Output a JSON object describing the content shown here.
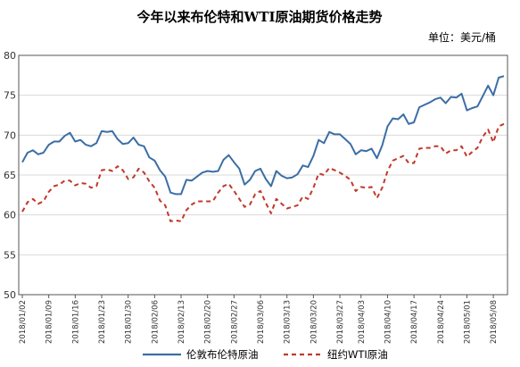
{
  "chart_data": {
    "type": "line",
    "title": "今年以来布伦特和WTI原油期货价格走势",
    "unit_label": "单位：美元/桶",
    "xlabel": "",
    "ylabel": "",
    "ylim": [
      50,
      80
    ],
    "y_ticks": [
      50,
      55,
      60,
      65,
      70,
      75,
      80
    ],
    "grid": "horizontal",
    "legend_position": "bottom",
    "x": [
      "2018/01/02",
      "2018/01/03",
      "2018/01/04",
      "2018/01/05",
      "2018/01/08",
      "2018/01/09",
      "2018/01/10",
      "2018/01/11",
      "2018/01/12",
      "2018/01/15",
      "2018/01/16",
      "2018/01/17",
      "2018/01/18",
      "2018/01/19",
      "2018/01/22",
      "2018/01/23",
      "2018/01/24",
      "2018/01/25",
      "2018/01/26",
      "2018/01/29",
      "2018/01/30",
      "2018/01/31",
      "2018/02/01",
      "2018/02/02",
      "2018/02/05",
      "2018/02/06",
      "2018/02/07",
      "2018/02/08",
      "2018/02/09",
      "2018/02/12",
      "2018/02/13",
      "2018/02/14",
      "2018/02/15",
      "2018/02/16",
      "2018/02/19",
      "2018/02/20",
      "2018/02/21",
      "2018/02/22",
      "2018/02/23",
      "2018/02/26",
      "2018/02/27",
      "2018/02/28",
      "2018/03/01",
      "2018/03/02",
      "2018/03/05",
      "2018/03/06",
      "2018/03/07",
      "2018/03/08",
      "2018/03/09",
      "2018/03/12",
      "2018/03/13",
      "2018/03/14",
      "2018/03/15",
      "2018/03/16",
      "2018/03/19",
      "2018/03/20",
      "2018/03/21",
      "2018/03/22",
      "2018/03/23",
      "2018/03/26",
      "2018/03/27",
      "2018/03/28",
      "2018/03/29",
      "2018/04/02",
      "2018/04/03",
      "2018/04/04",
      "2018/04/05",
      "2018/04/06",
      "2018/04/09",
      "2018/04/10",
      "2018/04/11",
      "2018/04/12",
      "2018/04/13",
      "2018/04/16",
      "2018/04/17",
      "2018/04/18",
      "2018/04/19",
      "2018/04/20",
      "2018/04/23",
      "2018/04/24",
      "2018/04/25",
      "2018/04/26",
      "2018/04/27",
      "2018/04/30",
      "2018/05/01",
      "2018/05/02",
      "2018/05/03",
      "2018/05/04",
      "2018/05/07",
      "2018/05/08",
      "2018/05/09",
      "2018/05/10"
    ],
    "x_tick_labels": [
      "2018/01/02",
      "2018/01/09",
      "2018/01/16",
      "2018/01/23",
      "2018/01/30",
      "2018/02/06",
      "2018/02/13",
      "2018/02/20",
      "2018/02/27",
      "2018/03/06",
      "2018/03/13",
      "2018/03/20",
      "2018/03/27",
      "2018/04/03",
      "2018/04/10",
      "2018/04/17",
      "2018/04/24",
      "2018/05/01",
      "2018/05/08"
    ],
    "series": [
      {
        "name": "伦敦布伦特原油",
        "color": "#3b6ea5",
        "style": "solid",
        "values": [
          66.6,
          67.8,
          68.1,
          67.6,
          67.8,
          68.8,
          69.2,
          69.2,
          69.9,
          70.3,
          69.2,
          69.4,
          68.8,
          68.6,
          69.0,
          70.5,
          70.4,
          70.5,
          69.5,
          68.9,
          69.0,
          69.7,
          68.8,
          68.6,
          67.2,
          66.8,
          65.6,
          64.8,
          62.8,
          62.6,
          62.6,
          64.4,
          64.3,
          64.8,
          65.3,
          65.5,
          65.4,
          65.5,
          66.9,
          67.5,
          66.6,
          65.8,
          63.8,
          64.4,
          65.5,
          65.8,
          64.5,
          63.6,
          65.5,
          64.9,
          64.6,
          64.7,
          65.1,
          66.2,
          66.0,
          67.4,
          69.4,
          69.0,
          70.4,
          70.1,
          70.1,
          69.5,
          68.9,
          67.6,
          68.1,
          68.0,
          68.3,
          67.1,
          68.7,
          71.1,
          72.1,
          72.0,
          72.6,
          71.4,
          71.6,
          73.5,
          73.8,
          74.1,
          74.5,
          74.7,
          74.0,
          74.8,
          74.7,
          75.2,
          73.1,
          73.4,
          73.6,
          74.9,
          76.2,
          75.0,
          77.2,
          77.4
        ]
      },
      {
        "name": "纽约WTI原油",
        "color": "#c0392b",
        "style": "dashed",
        "values": [
          60.4,
          61.6,
          62.0,
          61.4,
          61.7,
          62.9,
          63.6,
          63.8,
          64.3,
          64.3,
          63.7,
          64.0,
          63.9,
          63.4,
          63.6,
          65.6,
          65.7,
          65.5,
          66.1,
          65.6,
          64.5,
          64.7,
          65.8,
          65.3,
          64.2,
          63.4,
          61.8,
          61.2,
          59.2,
          59.3,
          59.2,
          60.6,
          61.3,
          61.7,
          61.7,
          61.7,
          61.7,
          62.8,
          63.6,
          63.9,
          63.0,
          62.0,
          61.0,
          61.3,
          62.6,
          63.0,
          61.5,
          60.2,
          62.0,
          61.4,
          60.8,
          61.0,
          61.2,
          62.3,
          62.0,
          63.4,
          65.2,
          65.0,
          65.9,
          65.6,
          65.3,
          64.9,
          64.4,
          63.0,
          63.5,
          63.4,
          63.5,
          62.1,
          63.4,
          65.5,
          66.8,
          67.1,
          67.4,
          66.5,
          66.5,
          68.3,
          68.4,
          68.4,
          68.6,
          68.6,
          67.7,
          68.1,
          68.1,
          68.6,
          67.3,
          67.9,
          68.4,
          69.8,
          70.7,
          69.1,
          71.1,
          71.4
        ]
      }
    ]
  }
}
